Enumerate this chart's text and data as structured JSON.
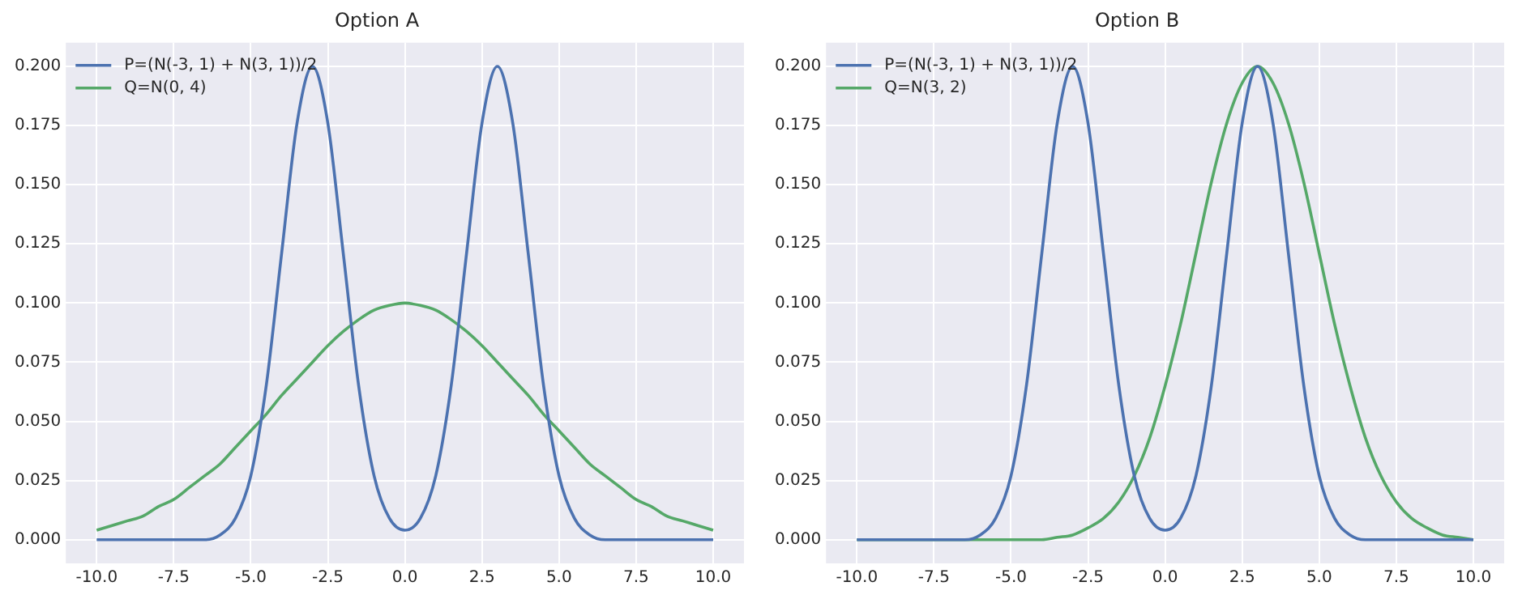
{
  "chart_data": [
    {
      "type": "line",
      "title": "Option A",
      "x": [
        -10,
        -9.5,
        -9,
        -8.5,
        -8,
        -7.5,
        -7,
        -6.5,
        -6,
        -5.5,
        -5,
        -4.5,
        -4,
        -3.5,
        -3,
        -2.5,
        -2,
        -1.5,
        -1,
        -0.5,
        0,
        0.5,
        1,
        1.5,
        2,
        2.5,
        3,
        3.5,
        4,
        4.5,
        5,
        5.5,
        6,
        6.5,
        7,
        7.5,
        8,
        8.5,
        9,
        9.5,
        10
      ],
      "series": [
        {
          "name": "P=(N(-3, 1) + N(3, 1))/2",
          "color": "#4c72b0",
          "values": [
            0,
            0,
            0,
            0,
            0,
            0,
            0,
            0,
            0.002,
            0.009,
            0.027,
            0.065,
            0.121,
            0.176,
            0.2,
            0.176,
            0.121,
            0.065,
            0.027,
            0.009,
            0.004,
            0.009,
            0.027,
            0.065,
            0.121,
            0.176,
            0.2,
            0.176,
            0.121,
            0.065,
            0.027,
            0.009,
            0.002,
            0,
            0,
            0,
            0,
            0,
            0,
            0,
            0
          ]
        },
        {
          "name": "Q=N(0, 4)",
          "color": "#55a868",
          "values": [
            0.004,
            0.006,
            0.008,
            0.01,
            0.014,
            0.017,
            0.022,
            0.027,
            0.032,
            0.039,
            0.046,
            0.053,
            0.061,
            0.068,
            0.075,
            0.082,
            0.088,
            0.093,
            0.097,
            0.099,
            0.1,
            0.099,
            0.097,
            0.093,
            0.088,
            0.082,
            0.075,
            0.068,
            0.061,
            0.053,
            0.046,
            0.039,
            0.032,
            0.027,
            0.022,
            0.017,
            0.014,
            0.01,
            0.008,
            0.006,
            0.004
          ]
        }
      ],
      "xlim": [
        -11,
        11
      ],
      "xticks": [
        {
          "value": -10,
          "label": "-10.0"
        },
        {
          "value": -7.5,
          "label": "-7.5"
        },
        {
          "value": -5,
          "label": "-5.0"
        },
        {
          "value": -2.5,
          "label": "-2.5"
        },
        {
          "value": 0,
          "label": "0.0"
        },
        {
          "value": 2.5,
          "label": "2.5"
        },
        {
          "value": 5,
          "label": "5.0"
        },
        {
          "value": 7.5,
          "label": "7.5"
        },
        {
          "value": 10,
          "label": "10.0"
        }
      ],
      "ylim": [
        -0.01,
        0.21
      ],
      "yticks": [
        {
          "value": 0,
          "label": "0.000"
        },
        {
          "value": 0.025,
          "label": "0.025"
        },
        {
          "value": 0.05,
          "label": "0.050"
        },
        {
          "value": 0.075,
          "label": "0.075"
        },
        {
          "value": 0.1,
          "label": "0.100"
        },
        {
          "value": 0.125,
          "label": "0.125"
        },
        {
          "value": 0.15,
          "label": "0.150"
        },
        {
          "value": 0.175,
          "label": "0.175"
        },
        {
          "value": 0.2,
          "label": "0.200"
        }
      ],
      "grid": true,
      "legend": "top left",
      "marker": "none",
      "line_style": "solid"
    },
    {
      "type": "line",
      "title": "Option B",
      "x": [
        -10,
        -9.5,
        -9,
        -8.5,
        -8,
        -7.5,
        -7,
        -6.5,
        -6,
        -5.5,
        -5,
        -4.5,
        -4,
        -3.5,
        -3,
        -2.5,
        -2,
        -1.5,
        -1,
        -0.5,
        0,
        0.5,
        1,
        1.5,
        2,
        2.5,
        3,
        3.5,
        4,
        4.5,
        5,
        5.5,
        6,
        6.5,
        7,
        7.5,
        8,
        8.5,
        9,
        9.5,
        10
      ],
      "series": [
        {
          "name": "P=(N(-3, 1) + N(3, 1))/2",
          "color": "#4c72b0",
          "values": [
            0,
            0,
            0,
            0,
            0,
            0,
            0,
            0,
            0.002,
            0.009,
            0.027,
            0.065,
            0.121,
            0.176,
            0.2,
            0.176,
            0.121,
            0.065,
            0.027,
            0.009,
            0.004,
            0.009,
            0.027,
            0.065,
            0.121,
            0.176,
            0.2,
            0.176,
            0.121,
            0.065,
            0.027,
            0.009,
            0.002,
            0,
            0,
            0,
            0,
            0,
            0,
            0,
            0
          ]
        },
        {
          "name": "Q=N(3, 2)",
          "color": "#55a868",
          "values": [
            0,
            0,
            0,
            0,
            0,
            0,
            0,
            0,
            0,
            0,
            0,
            0,
            0,
            0.001,
            0.002,
            0.005,
            0.009,
            0.016,
            0.027,
            0.043,
            0.065,
            0.091,
            0.121,
            0.151,
            0.176,
            0.193,
            0.2,
            0.193,
            0.176,
            0.151,
            0.121,
            0.091,
            0.065,
            0.043,
            0.027,
            0.016,
            0.009,
            0.005,
            0.002,
            0.001,
            0
          ]
        }
      ],
      "xlim": [
        -11,
        11
      ],
      "xticks": [
        {
          "value": -10,
          "label": "-10.0"
        },
        {
          "value": -7.5,
          "label": "-7.5"
        },
        {
          "value": -5,
          "label": "-5.0"
        },
        {
          "value": -2.5,
          "label": "-2.5"
        },
        {
          "value": 0,
          "label": "0.0"
        },
        {
          "value": 2.5,
          "label": "2.5"
        },
        {
          "value": 5,
          "label": "5.0"
        },
        {
          "value": 7.5,
          "label": "7.5"
        },
        {
          "value": 10,
          "label": "10.0"
        }
      ],
      "ylim": [
        -0.01,
        0.21
      ],
      "yticks": [
        {
          "value": 0,
          "label": "0.000"
        },
        {
          "value": 0.025,
          "label": "0.025"
        },
        {
          "value": 0.05,
          "label": "0.050"
        },
        {
          "value": 0.075,
          "label": "0.075"
        },
        {
          "value": 0.1,
          "label": "0.100"
        },
        {
          "value": 0.125,
          "label": "0.125"
        },
        {
          "value": 0.15,
          "label": "0.150"
        },
        {
          "value": 0.175,
          "label": "0.175"
        },
        {
          "value": 0.2,
          "label": "0.200"
        }
      ],
      "grid": true,
      "legend": "top left",
      "marker": "none",
      "line_style": "solid"
    }
  ]
}
